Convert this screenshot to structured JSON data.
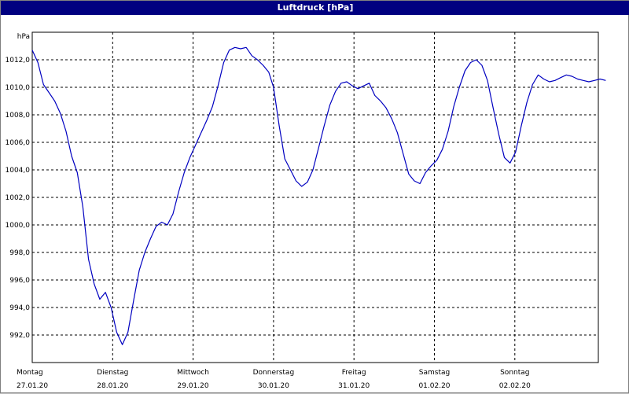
{
  "window": {
    "title": "Luftdruck [hPa]"
  },
  "chart_data": {
    "type": "line",
    "title": "Luftdruck [hPa]",
    "ylabel": "hPa",
    "xlabel": "",
    "ylim": [
      990,
      1014
    ],
    "yticks": [
      "992,0",
      "994,0",
      "996,0",
      "998,0",
      "1000,0",
      "1002,0",
      "1004,0",
      "1006,0",
      "1008,0",
      "1010,0",
      "1012,0"
    ],
    "xlim": [
      0,
      7.15
    ],
    "xticks": [
      {
        "day": "Montag",
        "date": "27.01.20"
      },
      {
        "day": "Dienstag",
        "date": "28.01.20"
      },
      {
        "day": "Mittwoch",
        "date": "29.01.20"
      },
      {
        "day": "Donnerstag",
        "date": "30.01.20"
      },
      {
        "day": "Freitag",
        "date": "31.01.20"
      },
      {
        "day": "Samstag",
        "date": "01.02.20"
      },
      {
        "day": "Sonntag",
        "date": "02.02.20"
      }
    ],
    "grid": true,
    "series": [
      {
        "color": "#0000c0",
        "x": [
          0.0,
          0.07,
          0.14,
          0.21,
          0.28,
          0.35,
          0.42,
          0.49,
          0.56,
          0.63,
          0.7,
          0.77,
          0.84,
          0.91,
          0.98,
          1.05,
          1.12,
          1.19,
          1.26,
          1.33,
          1.4,
          1.47,
          1.54,
          1.61,
          1.68,
          1.75,
          1.82,
          1.89,
          1.96,
          2.03,
          2.1,
          2.17,
          2.24,
          2.31,
          2.38,
          2.45,
          2.52,
          2.59,
          2.66,
          2.73,
          2.8,
          2.87,
          2.94,
          3.0,
          3.07,
          3.14,
          3.21,
          3.28,
          3.35,
          3.42,
          3.49,
          3.56,
          3.63,
          3.7,
          3.77,
          3.84,
          3.91,
          3.98,
          4.05,
          4.12,
          4.19,
          4.26,
          4.33,
          4.4,
          4.47,
          4.54,
          4.61,
          4.68,
          4.75,
          4.82,
          4.89,
          4.96,
          5.03,
          5.1,
          5.17,
          5.24,
          5.31,
          5.38,
          5.45,
          5.52,
          5.59,
          5.66,
          5.73,
          5.8,
          5.87,
          5.94,
          6.01,
          6.08,
          6.15,
          6.22,
          6.29,
          6.36,
          6.43,
          6.5,
          6.57,
          6.64,
          6.71,
          6.78,
          6.85,
          6.92,
          6.99,
          7.06,
          7.13
        ],
        "values": [
          1012.7,
          1011.8,
          1010.2,
          1009.6,
          1009.0,
          1008.1,
          1006.8,
          1005.0,
          1003.8,
          1001.3,
          997.5,
          995.7,
          994.6,
          995.1,
          994.0,
          992.2,
          991.3,
          992.2,
          994.5,
          996.7,
          998.0,
          999.0,
          999.9,
          1000.2,
          1000.0,
          1000.8,
          1002.4,
          1003.8,
          1004.9,
          1005.8,
          1006.7,
          1007.6,
          1008.6,
          1010.1,
          1011.8,
          1012.7,
          1012.9,
          1012.8,
          1012.9,
          1012.3,
          1012.0,
          1011.6,
          1011.1,
          1010.0,
          1007.2,
          1004.8,
          1004.0,
          1003.2,
          1002.8,
          1003.1,
          1004.0,
          1005.6,
          1007.2,
          1008.7,
          1009.7,
          1010.3,
          1010.4,
          1010.1,
          1009.9,
          1010.1,
          1010.3,
          1009.4,
          1009.0,
          1008.5,
          1007.7,
          1006.7,
          1005.2,
          1003.7,
          1003.2,
          1003.0,
          1003.8,
          1004.3,
          1004.7,
          1005.5,
          1006.8,
          1008.6,
          1010.0,
          1011.2,
          1011.8,
          1012.0,
          1011.6,
          1010.5,
          1008.5,
          1006.6,
          1004.9,
          1004.5,
          1005.3,
          1007.2,
          1008.9,
          1010.2,
          1010.9,
          1010.6,
          1010.4,
          1010.5,
          1010.7,
          1010.9,
          1010.8,
          1010.6,
          1010.5,
          1010.4,
          1010.5,
          1010.6,
          1010.5
        ]
      }
    ]
  }
}
